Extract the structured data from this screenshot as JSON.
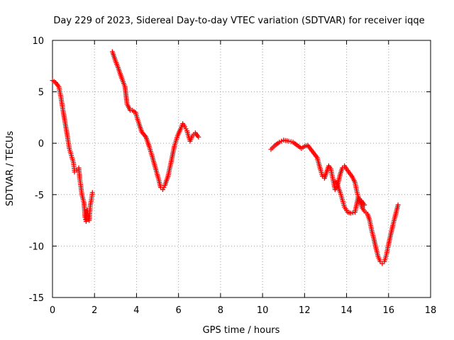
{
  "chart_data": {
    "type": "scatter",
    "title": "Day 229 of 2023, Sidereal Day-to-day VTEC variation (SDTVAR) for receiver iqqe",
    "xlabel": "GPS time / hours",
    "ylabel": "SDTVAR / TECUs",
    "xlim": [
      0,
      18
    ],
    "ylim": [
      -15,
      10
    ],
    "xticks": [
      "0",
      "2",
      "4",
      "6",
      "8",
      "10",
      "12",
      "14",
      "16",
      "18"
    ],
    "yticks": [
      "10",
      "5",
      "0",
      "-5",
      "-10",
      "-15"
    ],
    "grid": true,
    "marker": "+",
    "color": "#ff0000",
    "series": [
      {
        "name": "segment-1",
        "points": [
          [
            0.0,
            6.1
          ],
          [
            0.15,
            5.9
          ],
          [
            0.3,
            5.5
          ],
          [
            0.4,
            4.5
          ],
          [
            0.5,
            3.2
          ],
          [
            0.6,
            2.0
          ],
          [
            0.7,
            0.8
          ],
          [
            0.8,
            -0.5
          ],
          [
            0.9,
            -1.2
          ],
          [
            1.0,
            -1.9
          ],
          [
            1.05,
            -2.8
          ],
          [
            1.15,
            -2.6
          ],
          [
            1.25,
            -2.4
          ],
          [
            1.3,
            -3.5
          ],
          [
            1.35,
            -4.2
          ],
          [
            1.4,
            -5.0
          ],
          [
            1.5,
            -5.8
          ],
          [
            1.55,
            -7.2
          ],
          [
            1.6,
            -7.6
          ],
          [
            1.65,
            -6.5
          ],
          [
            1.7,
            -7.0
          ],
          [
            1.75,
            -7.5
          ],
          [
            1.8,
            -6.0
          ],
          [
            1.85,
            -5.5
          ],
          [
            1.9,
            -4.8
          ]
        ]
      },
      {
        "name": "segment-2",
        "points": [
          [
            2.85,
            8.9
          ],
          [
            3.0,
            8.0
          ],
          [
            3.15,
            7.2
          ],
          [
            3.3,
            6.3
          ],
          [
            3.45,
            5.5
          ],
          [
            3.55,
            3.8
          ],
          [
            3.7,
            3.2
          ],
          [
            3.8,
            3.2
          ],
          [
            3.95,
            3.0
          ],
          [
            4.1,
            2.0
          ],
          [
            4.25,
            1.1
          ],
          [
            4.45,
            0.6
          ],
          [
            4.6,
            -0.3
          ],
          [
            4.75,
            -1.3
          ],
          [
            4.9,
            -2.4
          ],
          [
            5.05,
            -3.5
          ],
          [
            5.15,
            -4.3
          ],
          [
            5.25,
            -4.5
          ],
          [
            5.35,
            -4.1
          ],
          [
            5.5,
            -3.2
          ],
          [
            5.65,
            -1.8
          ],
          [
            5.8,
            -0.3
          ],
          [
            5.95,
            0.7
          ],
          [
            6.1,
            1.4
          ],
          [
            6.2,
            1.9
          ],
          [
            6.3,
            1.6
          ],
          [
            6.4,
            1.2
          ],
          [
            6.55,
            0.2
          ],
          [
            6.65,
            0.7
          ],
          [
            6.8,
            1.0
          ],
          [
            6.95,
            0.6
          ]
        ]
      },
      {
        "name": "segment-3",
        "points": [
          [
            10.4,
            -0.6
          ],
          [
            10.6,
            -0.2
          ],
          [
            10.8,
            0.1
          ],
          [
            11.0,
            0.3
          ],
          [
            11.25,
            0.2
          ],
          [
            11.45,
            0.1
          ],
          [
            11.65,
            -0.2
          ],
          [
            11.85,
            -0.5
          ],
          [
            12.0,
            -0.3
          ],
          [
            12.15,
            -0.2
          ],
          [
            12.3,
            -0.6
          ],
          [
            12.45,
            -1.0
          ],
          [
            12.6,
            -1.4
          ],
          [
            12.75,
            -2.5
          ],
          [
            12.85,
            -3.2
          ],
          [
            12.95,
            -3.4
          ],
          [
            13.05,
            -2.8
          ],
          [
            13.15,
            -2.2
          ],
          [
            13.25,
            -2.5
          ],
          [
            13.35,
            -3.5
          ],
          [
            13.45,
            -4.5
          ],
          [
            13.55,
            -4.2
          ],
          [
            13.7,
            -3.0
          ],
          [
            13.8,
            -2.4
          ],
          [
            13.9,
            -2.2
          ],
          [
            14.0,
            -2.5
          ],
          [
            14.1,
            -2.8
          ],
          [
            14.25,
            -3.2
          ],
          [
            14.4,
            -3.8
          ],
          [
            14.5,
            -4.8
          ],
          [
            14.6,
            -5.5
          ],
          [
            14.7,
            -6.0
          ],
          [
            14.75,
            -6.3
          ],
          [
            14.85,
            -6.6
          ],
          [
            15.0,
            -6.9
          ],
          [
            15.1,
            -7.5
          ],
          [
            15.2,
            -8.5
          ],
          [
            15.3,
            -9.3
          ],
          [
            15.4,
            -10.2
          ],
          [
            15.5,
            -11.0
          ],
          [
            15.6,
            -11.5
          ],
          [
            15.7,
            -11.7
          ],
          [
            15.8,
            -11.5
          ],
          [
            15.9,
            -10.8
          ],
          [
            16.0,
            -9.8
          ],
          [
            16.1,
            -8.9
          ],
          [
            16.2,
            -8.0
          ],
          [
            16.3,
            -7.2
          ],
          [
            16.45,
            -6.0
          ]
        ]
      },
      {
        "name": "segment-4",
        "points": [
          [
            13.45,
            -3.7
          ],
          [
            13.55,
            -4.0
          ],
          [
            13.7,
            -4.8
          ],
          [
            13.8,
            -5.5
          ],
          [
            13.9,
            -6.2
          ],
          [
            14.05,
            -6.7
          ],
          [
            14.2,
            -6.8
          ],
          [
            14.4,
            -6.7
          ],
          [
            14.55,
            -5.3
          ],
          [
            14.7,
            -5.6
          ],
          [
            14.85,
            -6.0
          ]
        ]
      }
    ]
  }
}
